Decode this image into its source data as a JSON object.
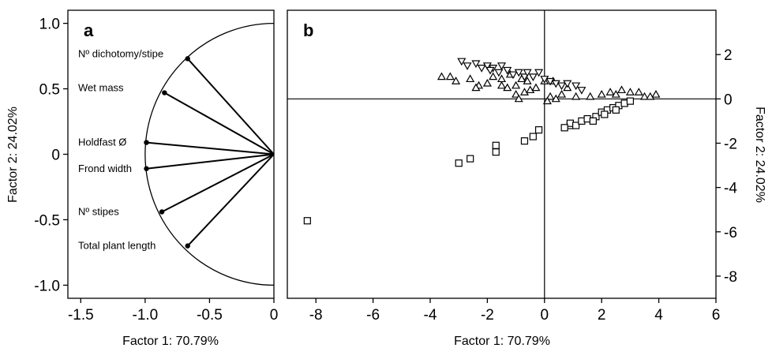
{
  "chart_data": [
    {
      "type": "scatter",
      "panel": "a",
      "subtype": "correlation-circle",
      "xlabel": "Factor 1: 70.79%",
      "ylabel": "Factor 2: 24.02%",
      "xlim": [
        -1.6,
        0
      ],
      "ylim": [
        -1.1,
        1.1
      ],
      "xticks": [
        -1.5,
        -1.0,
        -0.5,
        0
      ],
      "xtick_labels": [
        "-1.5",
        "-1.0",
        "-0.5",
        "0"
      ],
      "yticks": [
        1.0,
        0.5,
        0,
        -0.5,
        -1.0
      ],
      "ytick_labels": [
        "1.0",
        "0.5",
        "0",
        "-0.5",
        "-1.0"
      ],
      "grid": false,
      "variables": [
        {
          "label": "Nº dichotomy/stipe",
          "x": -0.67,
          "y": 0.73
        },
        {
          "label": "Wet mass",
          "x": -0.85,
          "y": 0.47
        },
        {
          "label": "Holdfast Ø",
          "x": -0.99,
          "y": 0.09
        },
        {
          "label": "Frond width",
          "x": -0.99,
          "y": -0.11
        },
        {
          "label": "Nº stipes",
          "x": -0.87,
          "y": -0.44
        },
        {
          "label": "Total plant length",
          "x": -0.67,
          "y": -0.7
        }
      ]
    },
    {
      "type": "scatter",
      "panel": "b",
      "xlabel": "Factor 1: 70.79%",
      "ylabel": "Factor 2: 24.02%",
      "xlim": [
        -9,
        6
      ],
      "ylim": [
        -9,
        4
      ],
      "xticks": [
        -8,
        -6,
        -4,
        -2,
        0,
        2,
        4,
        6
      ],
      "xtick_labels": [
        "-8",
        "-6",
        "-4",
        "-2",
        "0",
        "2",
        "4",
        "6"
      ],
      "yticks": [
        2,
        0,
        -2,
        -4,
        -6,
        -8
      ],
      "ytick_labels": [
        "2",
        "0",
        "-2",
        "-4",
        "-6",
        "-8"
      ],
      "grid": false,
      "series": [
        {
          "marker": "triangle-up",
          "points": [
            [
              -3.6,
              1.0
            ],
            [
              -3.3,
              1.0
            ],
            [
              -3.1,
              0.8
            ],
            [
              -2.6,
              0.9
            ],
            [
              -2.3,
              0.6
            ],
            [
              -2.0,
              0.7
            ],
            [
              -1.8,
              1.0
            ],
            [
              -1.5,
              0.6
            ],
            [
              -1.3,
              0.5
            ],
            [
              -1.0,
              0.6
            ],
            [
              -0.7,
              0.3
            ],
            [
              -0.5,
              0.4
            ],
            [
              -0.3,
              0.5
            ],
            [
              -1.2,
              1.1
            ],
            [
              -1.5,
              0.9
            ],
            [
              -0.8,
              0.9
            ],
            [
              -1.0,
              0.2
            ],
            [
              -0.6,
              0.8
            ],
            [
              -2.4,
              0.5
            ],
            [
              -0.9,
              0.0
            ],
            [
              0.0,
              0.8
            ],
            [
              0.2,
              0.1
            ],
            [
              0.4,
              0.0
            ],
            [
              0.6,
              0.2
            ],
            [
              0.8,
              0.5
            ],
            [
              1.1,
              0.1
            ],
            [
              1.6,
              0.1
            ],
            [
              2.0,
              0.2
            ],
            [
              2.3,
              0.3
            ],
            [
              2.5,
              0.2
            ],
            [
              2.7,
              0.4
            ],
            [
              3.0,
              0.3
            ],
            [
              3.3,
              0.3
            ],
            [
              3.5,
              0.1
            ],
            [
              3.7,
              0.1
            ],
            [
              3.9,
              0.2
            ],
            [
              0.3,
              0.8
            ],
            [
              0.1,
              -0.1
            ]
          ]
        },
        {
          "marker": "triangle-down",
          "points": [
            [
              -2.9,
              1.7
            ],
            [
              -2.7,
              1.5
            ],
            [
              -2.4,
              1.6
            ],
            [
              -2.2,
              1.4
            ],
            [
              -2.0,
              1.5
            ],
            [
              -1.8,
              1.4
            ],
            [
              -1.6,
              1.2
            ],
            [
              -1.3,
              1.3
            ],
            [
              -1.1,
              1.1
            ],
            [
              -0.9,
              1.2
            ],
            [
              -0.7,
              1.0
            ],
            [
              -0.4,
              1.0
            ],
            [
              -0.2,
              1.2
            ],
            [
              -1.5,
              1.5
            ],
            [
              -1.9,
              1.3
            ],
            [
              0.0,
              0.9
            ],
            [
              0.2,
              0.8
            ],
            [
              0.4,
              0.7
            ],
            [
              0.6,
              0.6
            ],
            [
              0.8,
              0.7
            ],
            [
              1.1,
              0.6
            ],
            [
              1.3,
              0.4
            ],
            [
              -0.6,
              1.2
            ]
          ]
        },
        {
          "marker": "square",
          "points": [
            [
              -8.3,
              -5.5
            ],
            [
              -3.0,
              -2.9
            ],
            [
              -2.6,
              -2.7
            ],
            [
              -1.7,
              -2.1
            ],
            [
              -1.7,
              -2.4
            ],
            [
              -0.7,
              -1.9
            ],
            [
              -0.4,
              -1.7
            ],
            [
              -0.2,
              -1.4
            ],
            [
              0.9,
              -1.2
            ],
            [
              0.9,
              -1.1
            ],
            [
              1.1,
              -1.2
            ],
            [
              1.3,
              -1.0
            ],
            [
              1.5,
              -0.9
            ],
            [
              1.8,
              -0.8
            ],
            [
              2.0,
              -0.6
            ],
            [
              2.2,
              -0.5
            ],
            [
              2.4,
              -0.4
            ],
            [
              2.6,
              -0.3
            ],
            [
              2.8,
              -0.2
            ],
            [
              3.0,
              -0.1
            ],
            [
              2.1,
              -0.7
            ],
            [
              2.5,
              -0.5
            ],
            [
              1.7,
              -1.0
            ],
            [
              0.7,
              -1.3
            ]
          ]
        }
      ]
    }
  ]
}
